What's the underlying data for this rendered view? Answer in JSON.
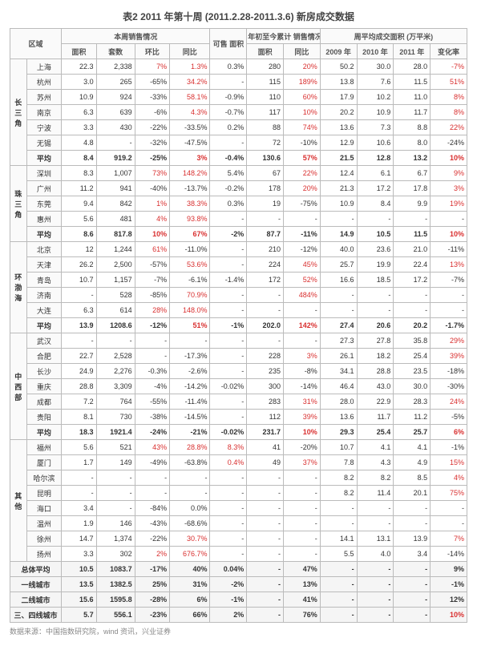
{
  "title": "表2  2011 年第十周 (2011.2.28-2011.3.6) 新房成交数据",
  "headers": {
    "g1": "本周销售情况",
    "g2": "可售\n面积",
    "g3": "年初至今累计\n销售情况",
    "g4": "周平均成交面积\n(万平米)",
    "region": "区域",
    "area": "面积",
    "sets": "套数",
    "hb": "环比",
    "tb": "同比",
    "hb2": "环比",
    "area2": "面积",
    "tb2": "同比",
    "y09": "2009 年",
    "y10": "2010 年",
    "y11": "2011 年",
    "chg": "变化率"
  },
  "colors": {
    "red": "#d93030",
    "border": "#bbb",
    "text": "#333"
  },
  "regions": [
    {
      "name": "长三角",
      "rows": [
        {
          "c": "上海",
          "v": [
            "22.3",
            "2,338",
            "7%",
            "1.3%",
            "0.3%",
            "280",
            "20%",
            "50.2",
            "30.0",
            "28.0",
            "-7%"
          ],
          "r": [
            2,
            3,
            6,
            10
          ]
        },
        {
          "c": "杭州",
          "v": [
            "3.0",
            "265",
            "-65%",
            "34.2%",
            "-",
            "115",
            "189%",
            "13.8",
            "7.6",
            "11.5",
            "51%"
          ],
          "r": [
            3,
            6,
            10
          ]
        },
        {
          "c": "苏州",
          "v": [
            "10.9",
            "924",
            "-33%",
            "58.1%",
            "-0.9%",
            "110",
            "60%",
            "17.9",
            "10.2",
            "11.0",
            "8%"
          ],
          "r": [
            3,
            6,
            10
          ]
        },
        {
          "c": "南京",
          "v": [
            "6.3",
            "639",
            "-6%",
            "4.3%",
            "-0.7%",
            "117",
            "10%",
            "20.2",
            "10.9",
            "11.7",
            "8%"
          ],
          "r": [
            3,
            6,
            10
          ]
        },
        {
          "c": "宁波",
          "v": [
            "3.3",
            "430",
            "-22%",
            "-33.5%",
            "0.2%",
            "88",
            "74%",
            "13.6",
            "7.3",
            "8.8",
            "22%"
          ],
          "r": [
            6,
            10
          ]
        },
        {
          "c": "无锡",
          "v": [
            "4.8",
            "-",
            "-32%",
            "-47.5%",
            "-",
            "72",
            "-10%",
            "12.9",
            "10.6",
            "8.0",
            "-24%"
          ],
          "r": []
        },
        {
          "c": "平均",
          "v": [
            "8.4",
            "919.2",
            "-25%",
            "3%",
            "-0.4%",
            "130.6",
            "57%",
            "21.5",
            "12.8",
            "13.2",
            "10%"
          ],
          "r": [
            3,
            6,
            10
          ],
          "avg": true
        }
      ]
    },
    {
      "name": "珠三角",
      "rows": [
        {
          "c": "深圳",
          "v": [
            "8.3",
            "1,007",
            "73%",
            "148.2%",
            "5.4%",
            "67",
            "22%",
            "12.4",
            "6.1",
            "6.7",
            "9%"
          ],
          "r": [
            2,
            3,
            6,
            10
          ]
        },
        {
          "c": "广州",
          "v": [
            "11.2",
            "941",
            "-40%",
            "-13.7%",
            "-0.2%",
            "178",
            "20%",
            "21.3",
            "17.2",
            "17.8",
            "3%"
          ],
          "r": [
            6,
            10
          ]
        },
        {
          "c": "东莞",
          "v": [
            "9.4",
            "842",
            "1%",
            "38.3%",
            "0.3%",
            "19",
            "-75%",
            "10.9",
            "8.4",
            "9.9",
            "19%"
          ],
          "r": [
            2,
            3,
            10
          ]
        },
        {
          "c": "惠州",
          "v": [
            "5.6",
            "481",
            "4%",
            "93.8%",
            "-",
            "-",
            "-",
            "-",
            "-",
            "-",
            "-"
          ],
          "r": [
            2,
            3
          ]
        },
        {
          "c": "平均",
          "v": [
            "8.6",
            "817.8",
            "10%",
            "67%",
            "-2%",
            "87.7",
            "-11%",
            "14.9",
            "10.5",
            "11.5",
            "10%"
          ],
          "r": [
            2,
            3,
            10
          ],
          "avg": true
        }
      ]
    },
    {
      "name": "环渤海",
      "rows": [
        {
          "c": "北京",
          "v": [
            "12",
            "1,244",
            "61%",
            "-11.0%",
            "-",
            "210",
            "-12%",
            "40.0",
            "23.6",
            "21.0",
            "-11%"
          ],
          "r": [
            2
          ]
        },
        {
          "c": "天津",
          "v": [
            "26.2",
            "2,500",
            "-57%",
            "53.6%",
            "-",
            "224",
            "45%",
            "25.7",
            "19.9",
            "22.4",
            "13%"
          ],
          "r": [
            3,
            6,
            10
          ]
        },
        {
          "c": "青岛",
          "v": [
            "10.7",
            "1,157",
            "-7%",
            "-6.1%",
            "-1.4%",
            "172",
            "52%",
            "16.6",
            "18.5",
            "17.2",
            "-7%"
          ],
          "r": [
            6
          ]
        },
        {
          "c": "济南",
          "v": [
            "-",
            "528",
            "-85%",
            "70.9%",
            "-",
            "-",
            "484%",
            "-",
            "-",
            "-",
            "-"
          ],
          "r": [
            3,
            6
          ]
        },
        {
          "c": "大连",
          "v": [
            "6.3",
            "614",
            "28%",
            "148.0%",
            "-",
            "-",
            "-",
            "-",
            "-",
            "-",
            "-"
          ],
          "r": [
            2,
            3
          ]
        },
        {
          "c": "平均",
          "v": [
            "13.9",
            "1208.6",
            "-12%",
            "51%",
            "-1%",
            "202.0",
            "142%",
            "27.4",
            "20.6",
            "20.2",
            "-1.7%"
          ],
          "r": [
            3,
            6
          ],
          "avg": true
        }
      ]
    },
    {
      "name": "中西部",
      "rows": [
        {
          "c": "武汉",
          "v": [
            "-",
            "-",
            "-",
            "-",
            "-",
            "-",
            "-",
            "27.3",
            "27.8",
            "35.8",
            "29%"
          ],
          "r": [
            10
          ]
        },
        {
          "c": "合肥",
          "v": [
            "22.7",
            "2,528",
            "-",
            "-17.3%",
            "-",
            "228",
            "3%",
            "26.1",
            "18.2",
            "25.4",
            "39%"
          ],
          "r": [
            6,
            10
          ]
        },
        {
          "c": "长沙",
          "v": [
            "24.9",
            "2,276",
            "-0.3%",
            "-2.6%",
            "-",
            "235",
            "-8%",
            "34.1",
            "28.8",
            "23.5",
            "-18%"
          ],
          "r": []
        },
        {
          "c": "重庆",
          "v": [
            "28.8",
            "3,309",
            "-4%",
            "-14.2%",
            "-0.02%",
            "300",
            "-14%",
            "46.4",
            "43.0",
            "30.0",
            "-30%"
          ],
          "r": []
        },
        {
          "c": "成都",
          "v": [
            "7.2",
            "764",
            "-55%",
            "-11.4%",
            "-",
            "283",
            "31%",
            "28.0",
            "22.9",
            "28.3",
            "24%"
          ],
          "r": [
            6,
            10
          ]
        },
        {
          "c": "贵阳",
          "v": [
            "8.1",
            "730",
            "-38%",
            "-14.5%",
            "-",
            "112",
            "39%",
            "13.6",
            "11.7",
            "11.2",
            "-5%"
          ],
          "r": [
            6
          ]
        },
        {
          "c": "平均",
          "v": [
            "18.3",
            "1921.4",
            "-24%",
            "-21%",
            "-0.02%",
            "231.7",
            "10%",
            "29.3",
            "25.4",
            "25.7",
            "6%"
          ],
          "r": [
            6,
            10
          ],
          "avg": true
        }
      ]
    },
    {
      "name": "其他",
      "rows": [
        {
          "c": "福州",
          "v": [
            "5.6",
            "521",
            "43%",
            "28.8%",
            "8.3%",
            "41",
            "-20%",
            "10.7",
            "4.1",
            "4.1",
            "-1%"
          ],
          "r": [
            2,
            3,
            4
          ]
        },
        {
          "c": "厦门",
          "v": [
            "1.7",
            "149",
            "-49%",
            "-63.8%",
            "0.4%",
            "49",
            "37%",
            "7.8",
            "4.3",
            "4.9",
            "15%"
          ],
          "r": [
            4,
            6,
            10
          ]
        },
        {
          "c": "哈尔滨",
          "v": [
            "-",
            "-",
            "-",
            "-",
            "-",
            "-",
            "-",
            "8.2",
            "8.2",
            "8.5",
            "4%"
          ],
          "r": [
            10
          ]
        },
        {
          "c": "昆明",
          "v": [
            "-",
            "-",
            "-",
            "-",
            "-",
            "-",
            "-",
            "8.2",
            "11.4",
            "20.1",
            "75%"
          ],
          "r": [
            10
          ]
        },
        {
          "c": "海口",
          "v": [
            "3.4",
            "-",
            "-84%",
            "0.0%",
            "-",
            "-",
            "-",
            "-",
            "-",
            "-",
            "-"
          ],
          "r": []
        },
        {
          "c": "温州",
          "v": [
            "1.9",
            "146",
            "-43%",
            "-68.6%",
            "-",
            "-",
            "-",
            "-",
            "-",
            "-",
            "-"
          ],
          "r": []
        },
        {
          "c": "徐州",
          "v": [
            "14.7",
            "1,374",
            "-22%",
            "30.7%",
            "-",
            "-",
            "-",
            "14.1",
            "13.1",
            "13.9",
            "7%"
          ],
          "r": [
            3,
            10
          ]
        },
        {
          "c": "扬州",
          "v": [
            "3.3",
            "302",
            "2%",
            "676.7%",
            "-",
            "-",
            "-",
            "5.5",
            "4.0",
            "3.4",
            "-14%"
          ],
          "r": [
            2,
            3
          ]
        }
      ]
    }
  ],
  "totals": [
    {
      "c": "总体平均",
      "v": [
        "10.5",
        "1083.7",
        "-17%",
        "40%",
        "0.04%",
        "-",
        "47%",
        "-",
        "-",
        "-",
        "9%"
      ],
      "r": []
    },
    {
      "c": "一线城市",
      "v": [
        "13.5",
        "1382.5",
        "25%",
        "31%",
        "-2%",
        "-",
        "13%",
        "-",
        "-",
        "-",
        "-1%"
      ],
      "r": []
    },
    {
      "c": "二线城市",
      "v": [
        "15.6",
        "1595.8",
        "-28%",
        "6%",
        "-1%",
        "-",
        "41%",
        "-",
        "-",
        "-",
        "12%"
      ],
      "r": []
    },
    {
      "c": "三、四线城市",
      "v": [
        "5.7",
        "556.1",
        "-23%",
        "66%",
        "2%",
        "-",
        "76%",
        "-",
        "-",
        "-",
        "10%"
      ],
      "r": [
        10
      ]
    }
  ],
  "footer": "数据来源：中国指数研究院，wind 资讯，兴业证券"
}
